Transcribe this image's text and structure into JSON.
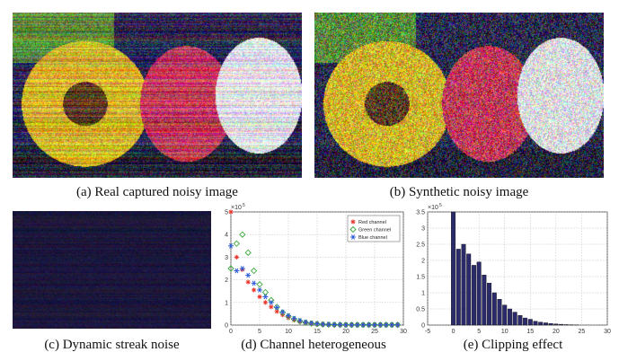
{
  "captions": {
    "a": "(a) Real captured noisy image",
    "b": "(b) Synthetic noisy image",
    "c": "(c) Dynamic streak noise",
    "d": "(d) Channel heterogeneous",
    "e": "(e) Clipping effect"
  },
  "chart_data": [
    {
      "id": "d",
      "type": "scatter",
      "xlim": [
        0,
        30
      ],
      "ylim": [
        0,
        5
      ],
      "xticks": [
        0,
        5,
        10,
        15,
        20,
        25,
        30
      ],
      "yticks": [
        0,
        1,
        2,
        3,
        4,
        5
      ],
      "multiplier_label": "×10",
      "multiplier_exp": "5",
      "grid": true,
      "legend_position": "top-right",
      "series": [
        {
          "name": "Red channel",
          "color": "#e8332a",
          "marker": "star",
          "x": [
            0,
            1,
            2,
            3,
            4,
            5,
            6,
            7,
            8,
            9,
            10,
            11,
            12,
            13,
            14,
            15,
            16,
            17,
            18,
            19,
            20,
            21,
            22,
            23,
            24,
            25,
            26,
            27,
            28,
            29
          ],
          "y": [
            5.0,
            3.0,
            2.45,
            1.9,
            1.55,
            1.25,
            1.0,
            0.8,
            0.6,
            0.45,
            0.32,
            0.22,
            0.15,
            0.1,
            0.07,
            0.05,
            0.03,
            0.02,
            0.015,
            0.01,
            0.01,
            0.01,
            0.01,
            0.01,
            0.01,
            0.01,
            0.01,
            0.01,
            0.01,
            0.01
          ]
        },
        {
          "name": "Green channel",
          "color": "#3aa83a",
          "marker": "diamond",
          "x": [
            0,
            1,
            2,
            3,
            4,
            5,
            6,
            7,
            8,
            9,
            10,
            11,
            12,
            13,
            14,
            15,
            16,
            17,
            18,
            19,
            20,
            21,
            22,
            23,
            24,
            25,
            26,
            27,
            28,
            29
          ],
          "y": [
            2.5,
            3.6,
            4.0,
            3.2,
            2.4,
            1.8,
            1.45,
            1.1,
            0.8,
            0.55,
            0.38,
            0.26,
            0.17,
            0.11,
            0.07,
            0.05,
            0.03,
            0.02,
            0.015,
            0.01,
            0.01,
            0.01,
            0.01,
            0.01,
            0.01,
            0.01,
            0.01,
            0.01,
            0.01,
            0.01
          ]
        },
        {
          "name": "Blue channel",
          "color": "#2a5bd7",
          "marker": "asterisk",
          "x": [
            0,
            1,
            2,
            3,
            4,
            5,
            6,
            7,
            8,
            9,
            10,
            11,
            12,
            13,
            14,
            15,
            16,
            17,
            18,
            19,
            20,
            21,
            22,
            23,
            24,
            25,
            26,
            27,
            28,
            29
          ],
          "y": [
            3.5,
            2.4,
            2.5,
            2.2,
            1.85,
            1.55,
            1.25,
            1.0,
            0.78,
            0.58,
            0.42,
            0.3,
            0.2,
            0.13,
            0.09,
            0.06,
            0.04,
            0.03,
            0.02,
            0.015,
            0.01,
            0.01,
            0.01,
            0.01,
            0.01,
            0.01,
            0.01,
            0.01,
            0.01,
            0.01
          ]
        }
      ]
    },
    {
      "id": "e",
      "type": "bar",
      "xlim": [
        -5,
        30
      ],
      "ylim": [
        0,
        3.5
      ],
      "xticks": [
        -5,
        0,
        5,
        10,
        15,
        20,
        25,
        30
      ],
      "yticks": [
        0,
        0.5,
        1,
        1.5,
        2,
        2.5,
        3,
        3.5
      ],
      "multiplier_label": "×10",
      "multiplier_exp": "5",
      "grid": true,
      "color": "#2b2a6b",
      "x": [
        0,
        1,
        2,
        3,
        4,
        5,
        6,
        7,
        8,
        9,
        10,
        11,
        12,
        13,
        14,
        15,
        16,
        17,
        18,
        19,
        20,
        21,
        22,
        23,
        24
      ],
      "values": [
        3.5,
        2.35,
        2.5,
        2.2,
        1.85,
        1.95,
        1.55,
        1.3,
        1.0,
        0.8,
        0.62,
        0.5,
        0.4,
        0.3,
        0.22,
        0.18,
        0.12,
        0.09,
        0.07,
        0.05,
        0.035,
        0.025,
        0.015,
        0.01,
        0.005
      ]
    }
  ]
}
